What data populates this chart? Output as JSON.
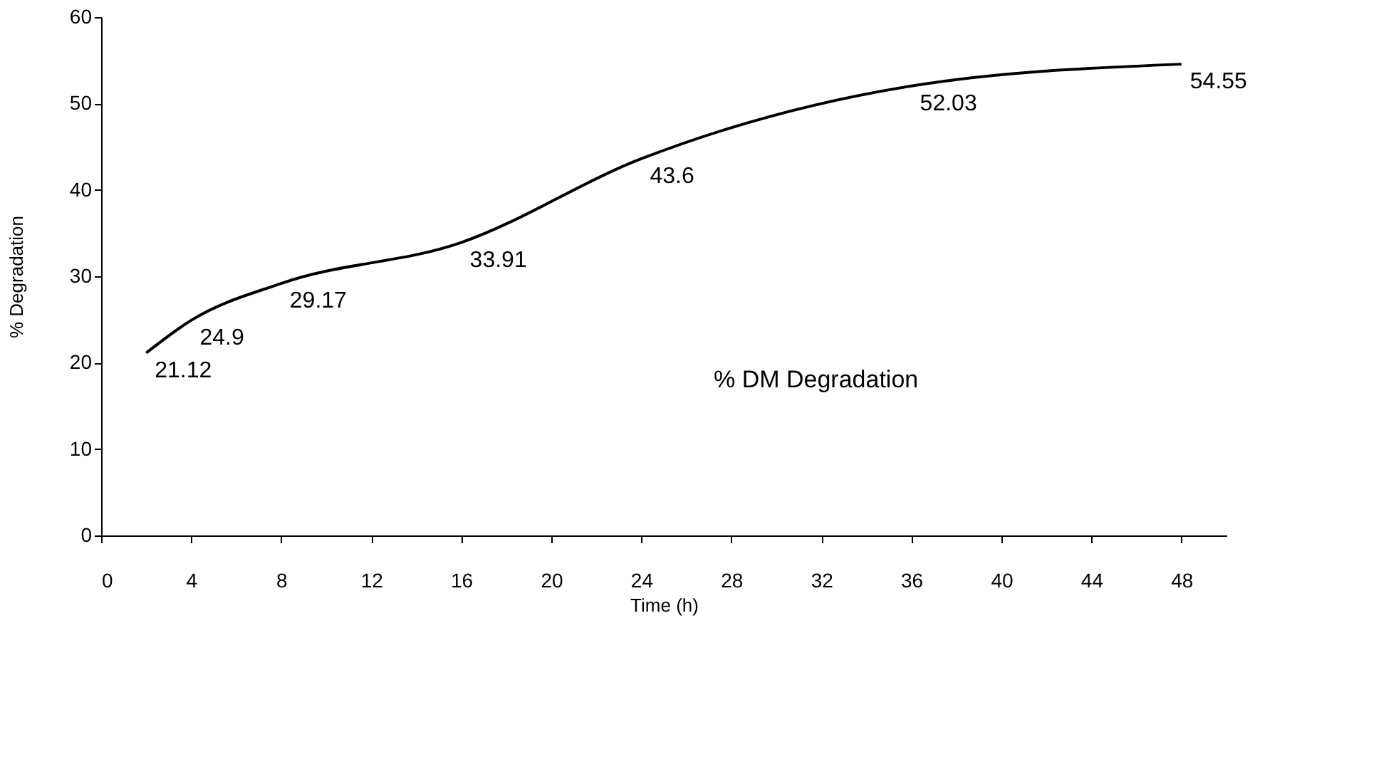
{
  "chart_data": {
    "type": "line",
    "xlabel": "Time (h)",
    "ylabel": "% Degradation",
    "annotations": [
      "% DM Degradation"
    ],
    "x": [
      2,
      4,
      8,
      16,
      24,
      36,
      48
    ],
    "series": [
      {
        "color": "#000000",
        "values": [
          21.12,
          24.9,
          29.17,
          33.91,
          43.6,
          52.03,
          54.55
        ]
      }
    ],
    "xlim": [
      0,
      50
    ],
    "xticks": [
      0,
      4,
      8,
      12,
      16,
      20,
      24,
      28,
      32,
      36,
      40,
      44,
      48
    ],
    "ylim": [
      0,
      60
    ],
    "yticks": [
      0,
      10,
      20,
      30,
      40,
      50,
      60
    ],
    "data_labels": true,
    "grid": false,
    "marker": "none",
    "line_style": "solid"
  }
}
